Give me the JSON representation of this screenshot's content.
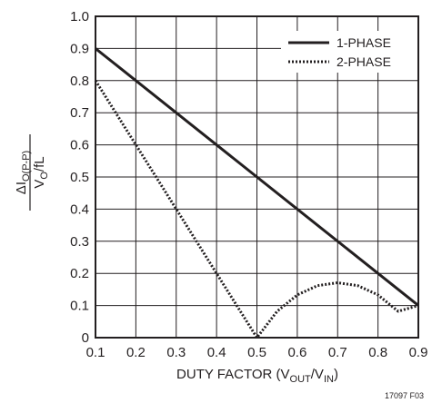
{
  "chart_data": {
    "type": "line",
    "title": "",
    "xlabel": "DUTY FACTOR (VOUT/VIN)",
    "xlabel_parts": {
      "base": "DUTY FACTOR (V",
      "sub1": "OUT",
      "mid": "/V",
      "sub2": "IN",
      "tail": ")"
    },
    "ylabel_numerator": {
      "prefix": "ΔI",
      "sub": "O(P-P)"
    },
    "ylabel_denominator": {
      "base": "V",
      "sub": "O",
      "tail": "/fL"
    },
    "xlim": [
      0.1,
      0.9
    ],
    "ylim": [
      0,
      1.0
    ],
    "x_ticks": [
      "0.1",
      "0.2",
      "0.3",
      "0.4",
      "0.5",
      "0.6",
      "0.7",
      "0.8",
      "0.9"
    ],
    "y_ticks": [
      "0",
      "0.1",
      "0.2",
      "0.3",
      "0.4",
      "0.5",
      "0.6",
      "0.7",
      "0.8",
      "0.9",
      "1.0"
    ],
    "grid": true,
    "legend_position": "top-right",
    "series": [
      {
        "name": "1-PHASE",
        "style": "solid",
        "color": "#231f20",
        "x": [
          0.1,
          0.9
        ],
        "y": [
          0.9,
          0.1
        ]
      },
      {
        "name": "2-PHASE",
        "style": "dotted",
        "color": "#231f20",
        "x": [
          0.1,
          0.2,
          0.3,
          0.4,
          0.45,
          0.5,
          0.55,
          0.6,
          0.65,
          0.7,
          0.75,
          0.8,
          0.85,
          0.9
        ],
        "y": [
          0.8,
          0.6,
          0.4,
          0.2,
          0.1,
          0.0,
          0.082,
          0.133,
          0.162,
          0.171,
          0.162,
          0.133,
          0.082,
          0.1
        ]
      }
    ],
    "figure_id": "17097 F03"
  }
}
